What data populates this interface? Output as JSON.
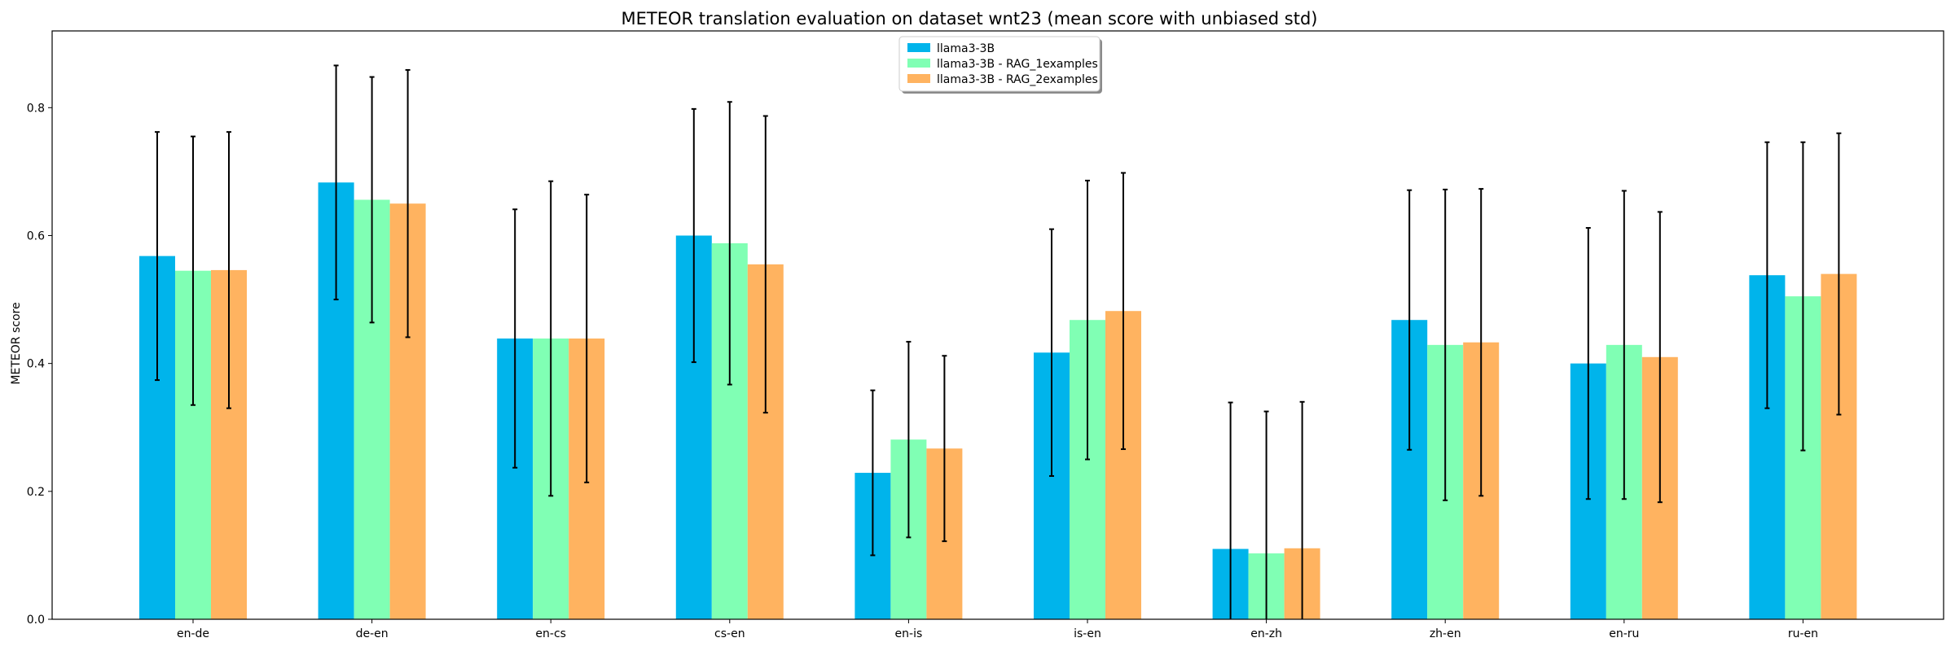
{
  "chart_data": {
    "type": "bar",
    "title": "METEOR translation evaluation on dataset wnt23 (mean score with unbiased std)",
    "xlabel": "",
    "ylabel": "METEOR score",
    "ylim": [
      0,
      0.92
    ],
    "yticks": [
      "0.0",
      "0.2",
      "0.4",
      "0.6",
      "0.8"
    ],
    "grid": false,
    "legend_position": "top-center",
    "categories": [
      "en-de",
      "de-en",
      "en-cs",
      "cs-en",
      "en-is",
      "is-en",
      "en-zh",
      "zh-en",
      "en-ru",
      "ru-en"
    ],
    "series": [
      {
        "name": "llama3-3B",
        "color": "#00b4eb",
        "values": [
          0.568,
          0.683,
          0.439,
          0.6,
          0.229,
          0.417,
          0.11,
          0.468,
          0.4,
          0.538
        ],
        "errors": [
          0.194,
          0.183,
          0.202,
          0.198,
          0.129,
          0.193,
          0.229,
          0.203,
          0.212,
          0.208
        ]
      },
      {
        "name": "llama3-3B - RAG_1examples",
        "color": "#80ffb4",
        "values": [
          0.545,
          0.656,
          0.439,
          0.588,
          0.281,
          0.468,
          0.103,
          0.429,
          0.429,
          0.505
        ],
        "errors": [
          0.21,
          0.192,
          0.246,
          0.221,
          0.153,
          0.218,
          0.222,
          0.243,
          0.241,
          0.241
        ]
      },
      {
        "name": "llama3-3B - RAG_2examples",
        "color": "#ffb360",
        "values": [
          0.546,
          0.65,
          0.439,
          0.555,
          0.267,
          0.482,
          0.111,
          0.433,
          0.41,
          0.54
        ],
        "errors": [
          0.216,
          0.209,
          0.225,
          0.232,
          0.145,
          0.216,
          0.229,
          0.24,
          0.227,
          0.22
        ]
      }
    ]
  }
}
